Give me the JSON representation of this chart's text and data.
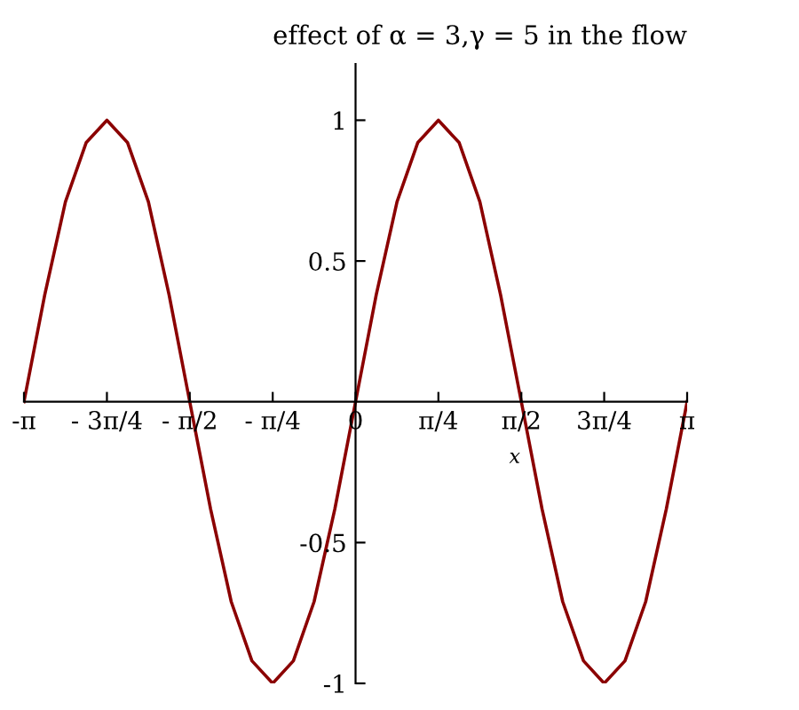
{
  "chart_data": {
    "type": "line",
    "title": "effect of α = 3,γ = 5 in the flow",
    "xlabel": "x",
    "x": [
      -3.142,
      -2.945,
      -2.749,
      -2.553,
      -2.356,
      -2.16,
      -1.963,
      -1.767,
      -1.571,
      -1.374,
      -1.178,
      -0.982,
      -0.785,
      -0.589,
      -0.393,
      -0.196,
      0,
      0.196,
      0.393,
      0.589,
      0.785,
      0.982,
      1.178,
      1.374,
      1.571,
      1.767,
      1.963,
      2.16,
      2.356,
      2.553,
      2.749,
      2.945,
      3.142
    ],
    "series": [
      {
        "color": "#8b0000",
        "values": [
          0,
          0.38,
          0.71,
          0.92,
          1,
          0.92,
          0.71,
          0.38,
          0,
          -0.38,
          -0.71,
          -0.92,
          -1,
          -0.92,
          -0.71,
          -0.38,
          0,
          0.38,
          0.71,
          0.92,
          1,
          0.92,
          0.71,
          0.38,
          0,
          -0.38,
          -0.71,
          -0.92,
          -1,
          -0.92,
          -0.71,
          -0.38,
          0
        ]
      }
    ],
    "xlim": [
      -3.142,
      3.142
    ],
    "ylim": [
      -1,
      1.2
    ],
    "xticks": [
      {
        "value": -3.142,
        "label": "-π"
      },
      {
        "value": -2.356,
        "label": "- 3π/4"
      },
      {
        "value": -1.571,
        "label": "- π/2"
      },
      {
        "value": -0.785,
        "label": "- π/4"
      },
      0,
      {
        "value": 0.785,
        "label": "π/4"
      },
      {
        "value": 1.571,
        "label": "π/2"
      },
      {
        "value": 2.356,
        "label": "3π/4"
      },
      {
        "value": 3.142,
        "label": "π"
      }
    ],
    "yticks": [
      -1,
      -0.5,
      0.5,
      1
    ],
    "grid": false,
    "legend": false,
    "marker": "none",
    "line_style": "solid"
  }
}
